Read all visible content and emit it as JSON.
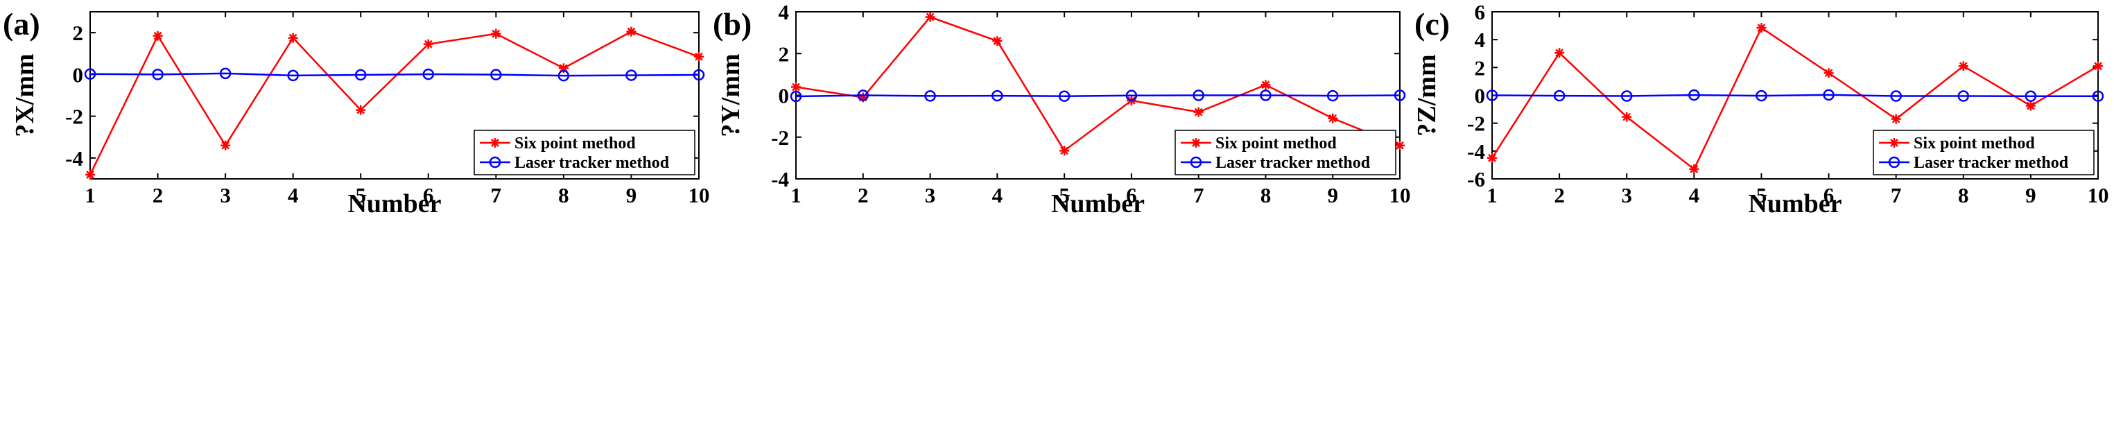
{
  "chart_data": [
    {
      "type": "line",
      "panel_label": "(a)",
      "title": "",
      "xlabel": "Number",
      "ylabel": "?X/mm",
      "x": [
        1,
        2,
        3,
        4,
        5,
        6,
        7,
        8,
        9,
        10
      ],
      "xlim": [
        1,
        10
      ],
      "ylim": [
        -5,
        3
      ],
      "xticks": [
        "1",
        "2",
        "3",
        "4",
        "5",
        "6",
        "7",
        "8",
        "9",
        "10"
      ],
      "yticks": [
        {
          "value": -4,
          "label": "-4"
        },
        {
          "value": -2,
          "label": "-2"
        },
        {
          "value": 0,
          "label": "0"
        },
        {
          "value": 2,
          "label": "2"
        }
      ],
      "legend_position": "bottom-right",
      "grid": false,
      "series": [
        {
          "name": "Six point method",
          "color": "#ff0000",
          "marker": "asterisk",
          "values": [
            -4.8,
            1.85,
            -3.4,
            1.75,
            -1.7,
            1.45,
            1.95,
            0.3,
            2.05,
            0.85
          ]
        },
        {
          "name": "Laser tracker method",
          "color": "#0000ff",
          "marker": "circle",
          "values": [
            0.02,
            0.0,
            0.05,
            -0.05,
            -0.02,
            0.01,
            -0.01,
            -0.06,
            -0.04,
            -0.02
          ]
        }
      ]
    },
    {
      "type": "line",
      "panel_label": "(b)",
      "title": "",
      "xlabel": "Number",
      "ylabel": "?Y/mm",
      "x": [
        1,
        2,
        3,
        4,
        5,
        6,
        7,
        8,
        9,
        10
      ],
      "xlim": [
        1,
        10
      ],
      "ylim": [
        -4,
        4
      ],
      "xticks": [
        "1",
        "2",
        "3",
        "4",
        "5",
        "6",
        "7",
        "8",
        "9",
        "10"
      ],
      "yticks": [
        {
          "value": -4,
          "label": "-4"
        },
        {
          "value": -2,
          "label": "-2"
        },
        {
          "value": 0,
          "label": "0"
        },
        {
          "value": 2,
          "label": "2"
        },
        {
          "value": 4,
          "label": "4"
        }
      ],
      "legend_position": "bottom-right",
      "grid": false,
      "series": [
        {
          "name": "Six point method",
          "color": "#ff0000",
          "marker": "asterisk",
          "values": [
            0.4,
            -0.1,
            3.75,
            2.6,
            -2.65,
            -0.25,
            -0.8,
            0.5,
            -1.1,
            -2.4
          ]
        },
        {
          "name": "Laser tracker method",
          "color": "#0000ff",
          "marker": "circle",
          "values": [
            -0.05,
            0.0,
            -0.03,
            -0.02,
            -0.04,
            -0.01,
            0.0,
            0.0,
            -0.02,
            0.0
          ]
        }
      ]
    },
    {
      "type": "line",
      "panel_label": "(c)",
      "title": "",
      "xlabel": "Number",
      "ylabel": "?Z/mm",
      "x": [
        1,
        2,
        3,
        4,
        5,
        6,
        7,
        8,
        9,
        10
      ],
      "xlim": [
        1,
        10
      ],
      "ylim": [
        -6,
        6
      ],
      "xticks": [
        "1",
        "2",
        "3",
        "4",
        "5",
        "6",
        "7",
        "8",
        "9",
        "10"
      ],
      "yticks": [
        {
          "value": -6,
          "label": "-6"
        },
        {
          "value": -4,
          "label": "-4"
        },
        {
          "value": -2,
          "label": "-2"
        },
        {
          "value": 0,
          "label": "0"
        },
        {
          "value": 2,
          "label": "2"
        },
        {
          "value": 4,
          "label": "4"
        },
        {
          "value": 6,
          "label": "6"
        }
      ],
      "legend_position": "bottom-right",
      "grid": false,
      "series": [
        {
          "name": "Six point method",
          "color": "#ff0000",
          "marker": "asterisk",
          "values": [
            -4.5,
            3.05,
            -1.55,
            -5.3,
            4.85,
            1.6,
            -1.7,
            2.1,
            -0.75,
            2.1
          ]
        },
        {
          "name": "Laser tracker method",
          "color": "#0000ff",
          "marker": "circle",
          "values": [
            0.0,
            -0.03,
            -0.05,
            0.02,
            -0.03,
            0.03,
            -0.05,
            -0.05,
            -0.06,
            -0.06
          ]
        }
      ]
    }
  ]
}
